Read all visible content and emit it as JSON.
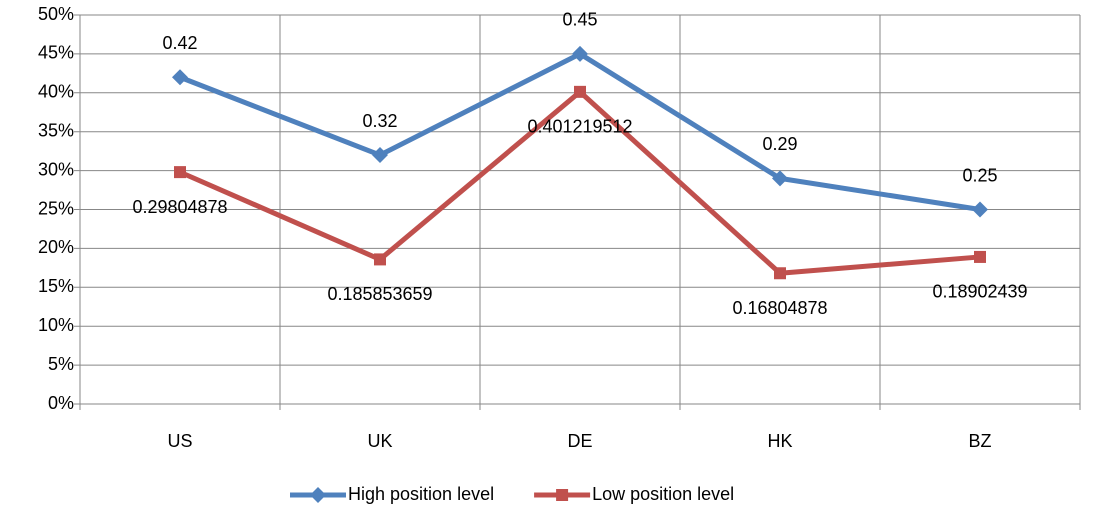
{
  "chart_data": {
    "type": "line",
    "categories": [
      "US",
      "UK",
      "DE",
      "HK",
      "BZ"
    ],
    "series": [
      {
        "name": "High position level",
        "color": "#4f81bd",
        "marker": "diamond",
        "values": [
          0.42,
          0.32,
          0.45,
          0.29,
          0.25
        ]
      },
      {
        "name": "Low position level",
        "color": "#c0504d",
        "marker": "square",
        "values": [
          0.29804878,
          0.185853659,
          0.401219512,
          0.16804878,
          0.18902439
        ]
      }
    ],
    "ylim": [
      0,
      0.5
    ],
    "yticks": [
      {
        "value": 0,
        "label": "0%"
      },
      {
        "value": 0.05,
        "label": "5%"
      },
      {
        "value": 0.1,
        "label": "10%"
      },
      {
        "value": 0.15,
        "label": "15%"
      },
      {
        "value": 0.2,
        "label": "20%"
      },
      {
        "value": 0.25,
        "label": "25%"
      },
      {
        "value": 0.3,
        "label": "30%"
      },
      {
        "value": 0.35,
        "label": "35%"
      },
      {
        "value": 0.4,
        "label": "40%"
      },
      {
        "value": 0.45,
        "label": "45%"
      },
      {
        "value": 0.5,
        "label": "50%"
      }
    ],
    "grid": true,
    "legend": "bottom"
  }
}
